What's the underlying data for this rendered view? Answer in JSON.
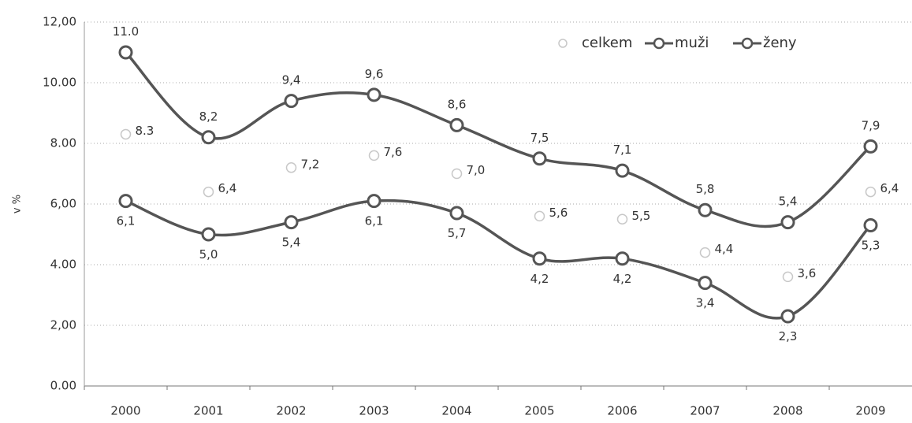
{
  "chart_data": {
    "type": "line",
    "y_label": "v %",
    "categories": [
      "2000",
      "2001",
      "2002",
      "2003",
      "2004",
      "2005",
      "2006",
      "2007",
      "2008",
      "2009"
    ],
    "series": [
      {
        "name": "celkem",
        "color": "#c8c8c8",
        "line": false,
        "values": [
          8.3,
          6.4,
          7.2,
          7.6,
          7.0,
          5.6,
          5.5,
          4.4,
          3.6,
          6.4
        ],
        "value_labels": [
          "8.3",
          "6,4",
          "7,2",
          "7,6",
          "7,0",
          "5,6",
          "5,5",
          "4,4",
          "3,6",
          "6,4"
        ]
      },
      {
        "name": "muži",
        "color": "#555555",
        "line": true,
        "values": [
          6.1,
          5.0,
          5.4,
          6.1,
          5.7,
          4.2,
          4.2,
          3.4,
          2.3,
          5.3
        ],
        "value_labels": [
          "6,1",
          "5,0",
          "5,4",
          "6,1",
          "5,7",
          "4,2",
          "4,2",
          "3,4",
          "2,3",
          "5,3"
        ]
      },
      {
        "name": "ženy",
        "color": "#555555",
        "line": true,
        "values": [
          11.0,
          8.2,
          9.4,
          9.6,
          8.6,
          7.5,
          7.1,
          5.8,
          5.4,
          7.9
        ],
        "value_labels": [
          "11.0",
          "8,2",
          "9,4",
          "9,6",
          "8,6",
          "7,5",
          "7,1",
          "5,8",
          "5,4",
          "7,9"
        ]
      }
    ],
    "ylim": [
      0,
      12
    ],
    "yticks": [
      {
        "value": 0,
        "label": "0.00"
      },
      {
        "value": 2,
        "label": "2,00"
      },
      {
        "value": 4,
        "label": "4.00"
      },
      {
        "value": 6,
        "label": "6,00"
      },
      {
        "value": 8,
        "label": "8.00"
      },
      {
        "value": 10,
        "label": "10.00"
      },
      {
        "value": 12,
        "label": "12,00"
      }
    ],
    "grid": true,
    "legend": "top-right"
  }
}
